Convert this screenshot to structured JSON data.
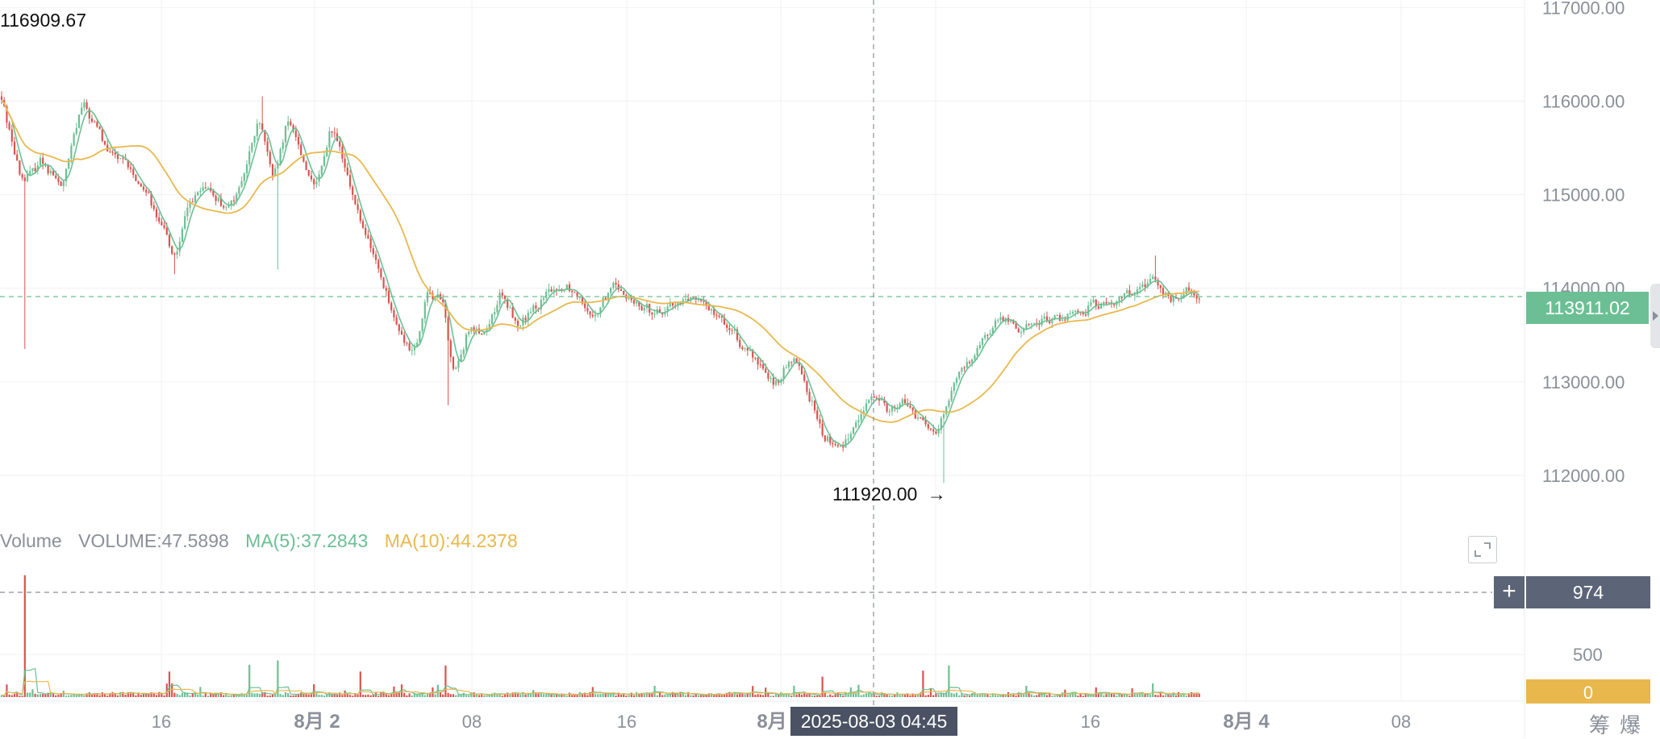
{
  "chart_data": {
    "type": "candlestick",
    "price_axis": {
      "ticks": [
        "117000.00",
        "116000.00",
        "115000.00",
        "114000.00",
        "113000.00",
        "112000.00"
      ],
      "ylim": [
        111440,
        117080
      ]
    },
    "time_axis": {
      "labels": [
        {
          "text": "16",
          "bold": false
        },
        {
          "text": "8月 2",
          "bold": true
        },
        {
          "text": "08",
          "bold": false
        },
        {
          "text": "16",
          "bold": false
        },
        {
          "text": "8月",
          "bold": true
        },
        {
          "text": "16",
          "bold": false
        },
        {
          "text": "8月 4",
          "bold": true
        },
        {
          "text": "08",
          "bold": false
        }
      ]
    },
    "annotations": {
      "high_value": "116909.67",
      "low_value": "111920.00",
      "low_arrow": "→"
    },
    "last_price": "113911.02",
    "last_price_value": 113911.02,
    "crosshair": {
      "time_label": "2025-08-03 04:45",
      "volume_value": "974"
    },
    "volume_panel": {
      "title": "Volume",
      "items": [
        {
          "label": "VOLUME:47.5898",
          "color": "#8a8f99"
        },
        {
          "label": "MA(5):37.2843",
          "color": "#6cbf94"
        },
        {
          "label": "MA(10):44.2378",
          "color": "#e8b84d"
        }
      ],
      "ticks": [
        "500",
        "0"
      ],
      "ylim": [
        0,
        1560
      ]
    },
    "price_anchors": [
      [
        0,
        116050
      ],
      [
        25,
        115100
      ],
      [
        50,
        115400
      ],
      [
        75,
        115050
      ],
      [
        100,
        116000
      ],
      [
        130,
        115500
      ],
      [
        150,
        115350
      ],
      [
        165,
        115200
      ],
      [
        185,
        114950
      ],
      [
        200,
        114650
      ],
      [
        215,
        114300
      ],
      [
        235,
        115000
      ],
      [
        260,
        115050
      ],
      [
        280,
        114800
      ],
      [
        300,
        115200
      ],
      [
        320,
        115850
      ],
      [
        338,
        115100
      ],
      [
        355,
        115850
      ],
      [
        375,
        115350
      ],
      [
        390,
        115000
      ],
      [
        410,
        115800
      ],
      [
        430,
        115100
      ],
      [
        450,
        114600
      ],
      [
        470,
        114150
      ],
      [
        490,
        113550
      ],
      [
        510,
        113300
      ],
      [
        530,
        114000
      ],
      [
        550,
        113800
      ],
      [
        560,
        112950
      ],
      [
        580,
        113650
      ],
      [
        600,
        113500
      ],
      [
        620,
        113950
      ],
      [
        640,
        113600
      ],
      [
        660,
        113750
      ],
      [
        680,
        113950
      ],
      [
        700,
        114050
      ],
      [
        715,
        113950
      ],
      [
        735,
        113700
      ],
      [
        760,
        114050
      ],
      [
        790,
        113800
      ],
      [
        820,
        113750
      ],
      [
        850,
        113900
      ],
      [
        880,
        113800
      ],
      [
        910,
        113500
      ],
      [
        935,
        113200
      ],
      [
        960,
        113000
      ],
      [
        985,
        113300
      ],
      [
        1000,
        112850
      ],
      [
        1020,
        112400
      ],
      [
        1040,
        112300
      ],
      [
        1065,
        112650
      ],
      [
        1085,
        112900
      ],
      [
        1100,
        112700
      ],
      [
        1120,
        112800
      ],
      [
        1140,
        112550
      ],
      [
        1160,
        112400
      ],
      [
        1180,
        113000
      ],
      [
        1200,
        113200
      ],
      [
        1220,
        113500
      ],
      [
        1240,
        113700
      ],
      [
        1260,
        113550
      ],
      [
        1290,
        113650
      ],
      [
        1320,
        113700
      ],
      [
        1350,
        113800
      ],
      [
        1380,
        113850
      ],
      [
        1400,
        113950
      ],
      [
        1420,
        114100
      ],
      [
        1435,
        114050
      ],
      [
        1450,
        113850
      ],
      [
        1470,
        114000
      ],
      [
        1490,
        113900
      ]
    ],
    "spikes": [
      {
        "x": 30,
        "low": 113350
      },
      {
        "x": 215,
        "low": 114150
      },
      {
        "x": 345,
        "low": 114200
      },
      {
        "x": 557,
        "low": 112750
      },
      {
        "x": 1169,
        "low": 111920
      },
      {
        "x": 325,
        "high": 116050
      },
      {
        "x": 1432,
        "high": 114350
      }
    ],
    "volume_spikes": [
      {
        "x": 30,
        "v": 1430
      },
      {
        "x": 210,
        "v": 300
      },
      {
        "x": 345,
        "v": 430
      },
      {
        "x": 448,
        "v": 300
      },
      {
        "x": 310,
        "v": 380
      },
      {
        "x": 553,
        "v": 370
      },
      {
        "x": 1145,
        "v": 310
      },
      {
        "x": 1175,
        "v": 370
      },
      {
        "x": 1430,
        "v": 160
      },
      {
        "x": 1020,
        "v": 240
      }
    ],
    "grid": true
  }
}
